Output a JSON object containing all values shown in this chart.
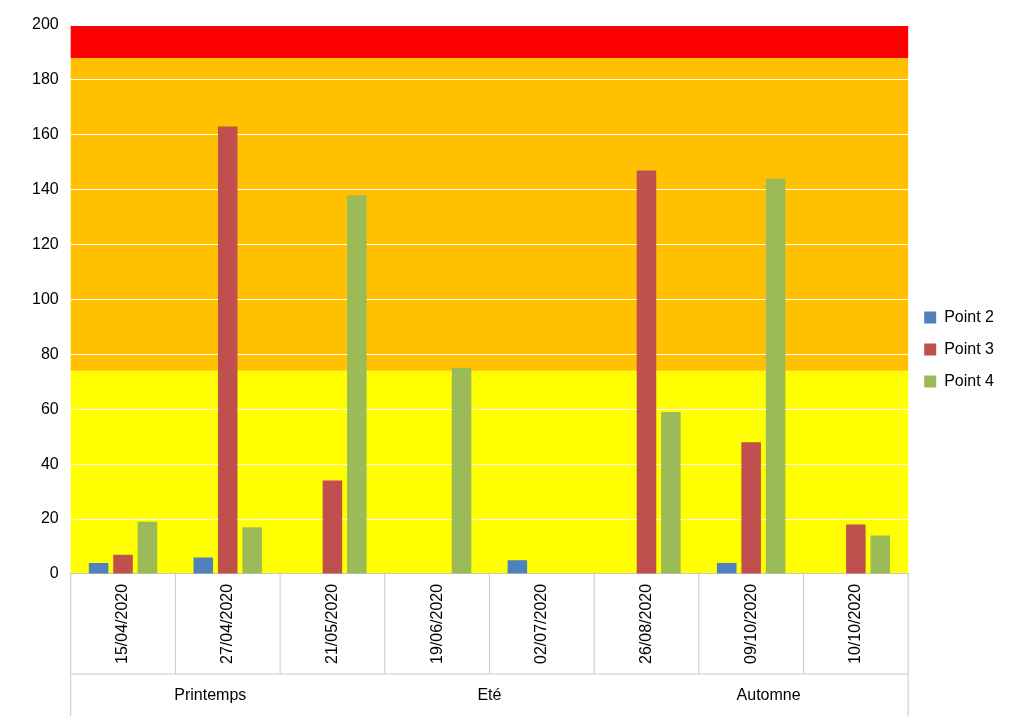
{
  "chart_data": {
    "type": "bar",
    "categories": [
      "15/04/2020",
      "27/04/2020",
      "21/05/2020",
      "19/06/2020",
      "02/07/2020",
      "26/08/2020",
      "09/10/2020",
      "10/10/2020"
    ],
    "series": [
      {
        "name": "Point 2",
        "color": "#4f81bd",
        "values": [
          4,
          6,
          null,
          null,
          5,
          null,
          4,
          null
        ]
      },
      {
        "name": "Point 3",
        "color": "#c0504d",
        "values": [
          7,
          163,
          34,
          null,
          null,
          147,
          48,
          18
        ]
      },
      {
        "name": "Point 4",
        "color": "#9bbb59",
        "values": [
          19,
          17,
          138,
          75,
          null,
          59,
          144,
          14
        ]
      }
    ],
    "ylim": [
      0,
      200
    ],
    "yticks": [
      0,
      20,
      40,
      60,
      80,
      100,
      120,
      140,
      160,
      180,
      200
    ],
    "grid": "y",
    "legend": "right",
    "bands": [
      {
        "axis": "y",
        "from": 0,
        "to": 74,
        "color": "#ffff00"
      },
      {
        "axis": "y",
        "from": 74,
        "to": 188,
        "color": "#ffc000"
      },
      {
        "axis": "y",
        "from": 188,
        "to": 200,
        "color": "#ff0000"
      }
    ],
    "annotations": [
      "Printemps",
      "Eté",
      "Automne"
    ]
  }
}
